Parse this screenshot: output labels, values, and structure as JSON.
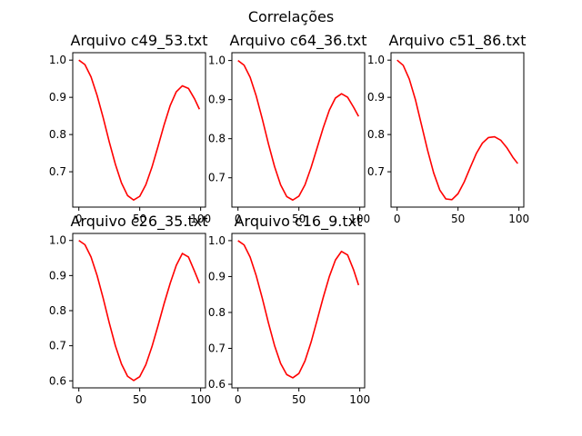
{
  "figure_title": "Correlações",
  "chart_data": [
    {
      "type": "line",
      "title": "Arquivo c49_53.txt",
      "xlim": [
        -5,
        104
      ],
      "ylim": [
        0.605,
        1.02
      ],
      "xticks": [
        0,
        50,
        100
      ],
      "yticks": [
        0.7,
        0.8,
        0.9,
        1.0
      ],
      "series": [
        {
          "color": "#ff0000",
          "x": [
            0,
            5,
            10,
            15,
            20,
            25,
            30,
            35,
            40,
            45,
            50,
            55,
            60,
            65,
            70,
            75,
            80,
            85,
            90,
            95,
            99
          ],
          "y": [
            1.0,
            0.988,
            0.955,
            0.905,
            0.845,
            0.78,
            0.72,
            0.67,
            0.636,
            0.624,
            0.634,
            0.665,
            0.712,
            0.768,
            0.826,
            0.878,
            0.915,
            0.931,
            0.924,
            0.896,
            0.868
          ]
        }
      ]
    },
    {
      "type": "line",
      "title": "Arquivo c64_36.txt",
      "xlim": [
        -5,
        104
      ],
      "ylim": [
        0.625,
        1.02
      ],
      "xticks": [
        0,
        50,
        100
      ],
      "yticks": [
        0.7,
        0.8,
        0.9,
        1.0
      ],
      "series": [
        {
          "color": "#ff0000",
          "x": [
            0,
            5,
            10,
            15,
            20,
            25,
            30,
            35,
            40,
            45,
            50,
            55,
            60,
            65,
            70,
            75,
            80,
            85,
            90,
            95,
            99
          ],
          "y": [
            1.0,
            0.988,
            0.957,
            0.909,
            0.85,
            0.787,
            0.729,
            0.682,
            0.652,
            0.643,
            0.653,
            0.682,
            0.726,
            0.777,
            0.828,
            0.873,
            0.904,
            0.915,
            0.906,
            0.88,
            0.857
          ]
        }
      ]
    },
    {
      "type": "line",
      "title": "Arquivo c51_86.txt",
      "xlim": [
        -5,
        104
      ],
      "ylim": [
        0.605,
        1.02
      ],
      "xticks": [
        0,
        50,
        100
      ],
      "yticks": [
        0.7,
        0.8,
        0.9,
        1.0
      ],
      "series": [
        {
          "color": "#ff0000",
          "x": [
            0,
            5,
            10,
            15,
            20,
            25,
            30,
            35,
            40,
            45,
            50,
            55,
            60,
            65,
            70,
            75,
            80,
            85,
            90,
            95,
            99
          ],
          "y": [
            1.0,
            0.986,
            0.949,
            0.894,
            0.826,
            0.758,
            0.697,
            0.651,
            0.627,
            0.625,
            0.641,
            0.672,
            0.711,
            0.749,
            0.777,
            0.792,
            0.794,
            0.785,
            0.765,
            0.739,
            0.722
          ]
        }
      ]
    },
    {
      "type": "line",
      "title": "Arquivo c26_35.txt",
      "xlim": [
        -5,
        104
      ],
      "ylim": [
        0.58,
        1.02
      ],
      "xticks": [
        0,
        50,
        100
      ],
      "yticks": [
        0.6,
        0.7,
        0.8,
        0.9,
        1.0
      ],
      "series": [
        {
          "color": "#ff0000",
          "x": [
            0,
            5,
            10,
            15,
            20,
            25,
            30,
            35,
            40,
            45,
            50,
            55,
            60,
            65,
            70,
            75,
            80,
            85,
            90,
            95,
            99
          ],
          "y": [
            1.0,
            0.988,
            0.953,
            0.9,
            0.835,
            0.765,
            0.7,
            0.648,
            0.613,
            0.601,
            0.612,
            0.646,
            0.697,
            0.757,
            0.82,
            0.878,
            0.929,
            0.963,
            0.953,
            0.912,
            0.878
          ]
        }
      ]
    },
    {
      "type": "line",
      "title": "Arquivo c16_9.txt",
      "xlim": [
        -5,
        104
      ],
      "ylim": [
        0.59,
        1.02
      ],
      "xticks": [
        0,
        50,
        100
      ],
      "yticks": [
        0.6,
        0.7,
        0.8,
        0.9,
        1.0
      ],
      "series": [
        {
          "color": "#ff0000",
          "x": [
            0,
            5,
            10,
            15,
            20,
            25,
            30,
            35,
            40,
            45,
            50,
            55,
            60,
            65,
            70,
            75,
            80,
            85,
            90,
            95,
            99
          ],
          "y": [
            1.0,
            0.988,
            0.954,
            0.902,
            0.839,
            0.771,
            0.708,
            0.658,
            0.627,
            0.618,
            0.63,
            0.665,
            0.717,
            0.779,
            0.842,
            0.9,
            0.946,
            0.97,
            0.96,
            0.918,
            0.876
          ]
        }
      ]
    }
  ]
}
